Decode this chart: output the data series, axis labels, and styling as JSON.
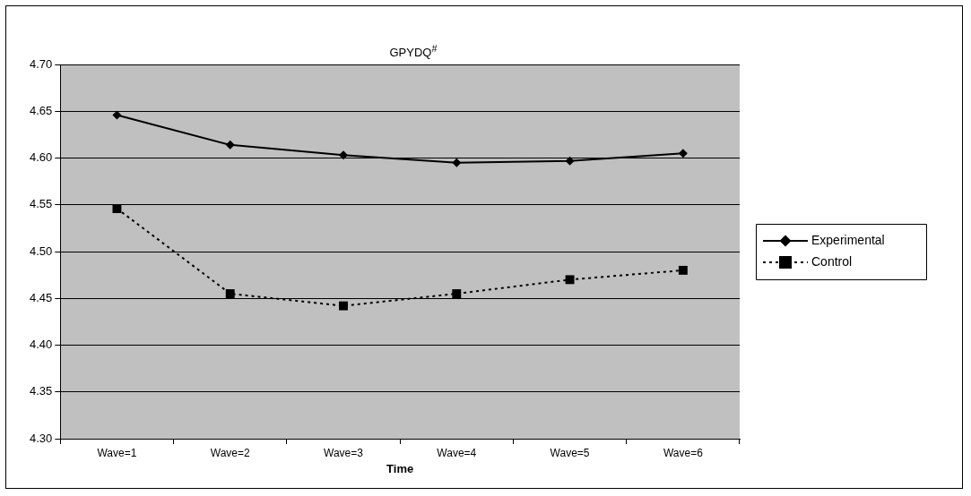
{
  "chart_data": {
    "type": "line",
    "title": "GPYDQ$^{#}$",
    "xlabel": "Time",
    "categories": [
      "Wave=1",
      "Wave=2",
      "Wave=3",
      "Wave=4",
      "Wave=5",
      "Wave=6"
    ],
    "series": [
      {
        "name": "Experimental",
        "color": "#000000",
        "marker": "diamond",
        "line_style": "solid",
        "values": [
          4.646,
          4.614,
          4.603,
          4.595,
          4.597,
          4.605
        ]
      },
      {
        "name": "Control",
        "color": "#000000",
        "marker": "square",
        "line_style": "dotted",
        "values": [
          4.546,
          4.455,
          4.442,
          4.455,
          4.47,
          4.48
        ]
      }
    ],
    "ylim": [
      4.3,
      4.7
    ],
    "yticks": [
      {
        "value": 4.3,
        "label": "4.30"
      },
      {
        "value": 4.35,
        "label": "4.35"
      },
      {
        "value": 4.4,
        "label": "4.40"
      },
      {
        "value": 4.45,
        "label": "4.45"
      },
      {
        "value": 4.5,
        "label": "4.50"
      },
      {
        "value": 4.55,
        "label": "4.55"
      },
      {
        "value": 4.6,
        "label": "4.60"
      },
      {
        "value": 4.65,
        "label": "4.65"
      },
      {
        "value": 4.7,
        "label": "4.70"
      }
    ],
    "grid": "y",
    "legend": "right"
  }
}
